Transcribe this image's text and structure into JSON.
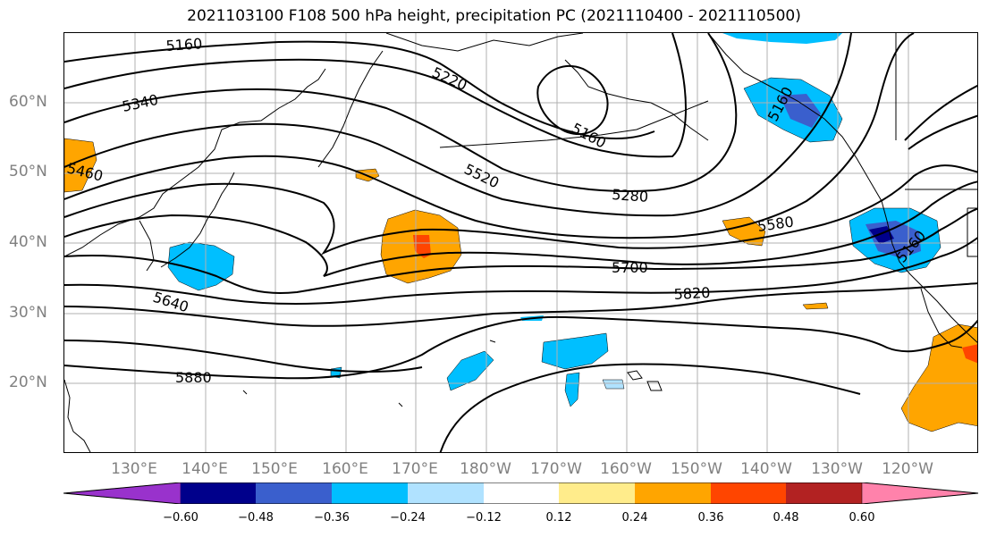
{
  "title": "2021103100 F108 500 hPa height, precipitation PC (2021110400 - 2021110500)",
  "map": {
    "lat_labels": [
      "60°N",
      "50°N",
      "40°N",
      "30°N",
      "20°N"
    ],
    "lon_labels": [
      "130°E",
      "140°E",
      "150°E",
      "160°E",
      "170°E",
      "180°W",
      "170°W",
      "160°W",
      "150°W",
      "140°W",
      "130°W",
      "120°W"
    ],
    "contour_labels": {
      "c5160a": "5160",
      "c5340": "5340",
      "c5460": "5460",
      "c5220": "5220",
      "c5160b": "5160",
      "c5520": "5520",
      "c5280": "5280",
      "c5580": "5580",
      "c5700": "5700",
      "c5820": "5820",
      "c5640": "5640",
      "c5880": "5880",
      "c5160c": "5160",
      "c5160d": "5160"
    }
  },
  "colorbar": {
    "colors": [
      "#9932cc",
      "#00008b",
      "#3a5fcd",
      "#00bfff",
      "#b0e2ff",
      "#ffffff",
      "#ffffff",
      "#ffec8b",
      "#ffa500",
      "#ff4500",
      "#b22222",
      "#ff82ab"
    ],
    "ticks": [
      "−0.60",
      "−0.48",
      "−0.36",
      "−0.24",
      "−0.12",
      "0.12",
      "0.24",
      "0.36",
      "0.48",
      "0.60"
    ]
  }
}
